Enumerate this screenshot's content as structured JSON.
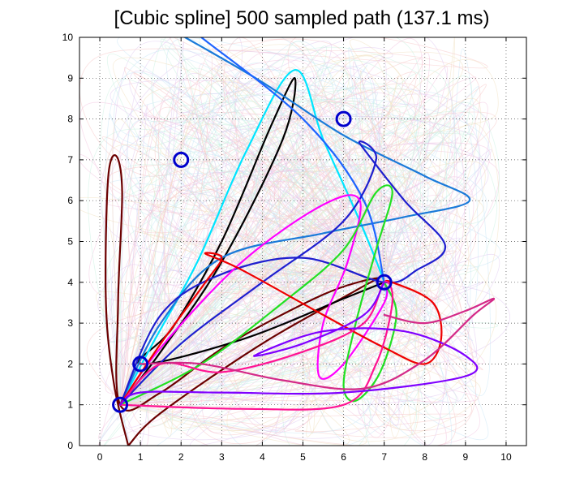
{
  "chart_data": {
    "type": "line",
    "title": "[Cubic spline] 500 sampled path (137.1 ms)",
    "xlabel": "",
    "ylabel": "",
    "xlim": [
      -0.5,
      10.5
    ],
    "ylim": [
      0,
      10
    ],
    "xticks": [
      "0",
      "1",
      "2",
      "3",
      "4",
      "5",
      "6",
      "7",
      "8",
      "9",
      "10"
    ],
    "yticks": [
      "0",
      "1",
      "2",
      "3",
      "4",
      "5",
      "6",
      "7",
      "8",
      "9",
      "10"
    ],
    "grid": true,
    "background_paths": {
      "count": 500,
      "colors": [
        "#f2c4e0",
        "#c8e6f5",
        "#f5c6c6",
        "#e0c8f0",
        "#c8f0e0",
        "#f0e0c0"
      ]
    },
    "waypoints": [
      {
        "x": 0.5,
        "y": 1.0
      },
      {
        "x": 1.0,
        "y": 2.0
      },
      {
        "x": 2.0,
        "y": 7.0
      },
      {
        "x": 6.0,
        "y": 8.0
      },
      {
        "x": 7.0,
        "y": 4.0
      }
    ],
    "waypoint_color": "#0000cc",
    "series": [
      {
        "color": "#6b0000",
        "points": [
          [
            0.7,
            0
          ],
          [
            0.35,
            1.5
          ],
          [
            0.15,
            3.5
          ],
          [
            0.2,
            6.5
          ],
          [
            0.4,
            7.1
          ],
          [
            0.55,
            6.2
          ],
          [
            0.45,
            3.5
          ],
          [
            0.5,
            1.0
          ],
          [
            1.5,
            1.3
          ],
          [
            3.2,
            2.5
          ],
          [
            5.5,
            3.7
          ],
          [
            6.8,
            4.1
          ],
          [
            6.3,
            3.8
          ],
          [
            4.0,
            2.5
          ],
          [
            1.5,
            0.8
          ],
          [
            0.7,
            0
          ]
        ]
      },
      {
        "color": "#000000",
        "points": [
          [
            0.5,
            1.0
          ],
          [
            1.5,
            2.3
          ],
          [
            3.0,
            4.5
          ],
          [
            4.5,
            7.5
          ],
          [
            4.8,
            9.0
          ],
          [
            4.2,
            7.8
          ],
          [
            3.0,
            5.0
          ],
          [
            1.8,
            2.9
          ],
          [
            1.0,
            2.0
          ],
          [
            3.5,
            2.6
          ],
          [
            6.0,
            3.6
          ],
          [
            7.0,
            4.0
          ]
        ]
      },
      {
        "color": "#00e5ff",
        "points": [
          [
            0.5,
            1.0
          ],
          [
            1.3,
            2.5
          ],
          [
            2.4,
            4.5
          ],
          [
            3.6,
            7.2
          ],
          [
            4.8,
            9.2
          ],
          [
            5.5,
            7.5
          ],
          [
            6.4,
            5.5
          ],
          [
            7.0,
            4.0
          ],
          [
            7.05,
            3.6
          ]
        ]
      },
      {
        "color": "#1a7ad9",
        "points": [
          [
            2.1,
            10.0
          ],
          [
            4.0,
            8.9
          ],
          [
            6.0,
            7.6
          ],
          [
            8.0,
            6.6
          ],
          [
            9.1,
            6.0
          ],
          [
            7.5,
            5.6
          ],
          [
            5.5,
            5.2
          ],
          [
            3.0,
            4.6
          ],
          [
            1.5,
            3.0
          ],
          [
            0.5,
            1.0
          ]
        ]
      },
      {
        "color": "#1e64ff",
        "points": [
          [
            2.5,
            10.0
          ],
          [
            5.0,
            8.0
          ],
          [
            6.5,
            6.0
          ],
          [
            7.0,
            4.0
          ]
        ]
      },
      {
        "color": "#1f1fcf",
        "points": [
          [
            0.5,
            1.0
          ],
          [
            2.0,
            2.5
          ],
          [
            4.0,
            4.0
          ],
          [
            6.0,
            5.5
          ],
          [
            6.8,
            7.0
          ],
          [
            6.4,
            7.4
          ],
          [
            7.5,
            6.0
          ],
          [
            8.5,
            4.9
          ],
          [
            7.8,
            4.3
          ],
          [
            7.0,
            4.0
          ],
          [
            5.0,
            4.6
          ],
          [
            3.0,
            4.2
          ],
          [
            1.5,
            3.2
          ],
          [
            0.5,
            1.0
          ]
        ]
      },
      {
        "color": "#ff00ff",
        "points": [
          [
            0.5,
            1.0
          ],
          [
            1.5,
            2.4
          ],
          [
            3.5,
            4.5
          ],
          [
            5.5,
            5.9
          ],
          [
            6.4,
            6.0
          ],
          [
            6.1,
            4.5
          ],
          [
            5.5,
            3.0
          ],
          [
            5.4,
            1.7
          ],
          [
            6.0,
            2.0
          ],
          [
            7.0,
            3.5
          ],
          [
            7.0,
            4.0
          ]
        ]
      },
      {
        "color": "#22e022",
        "points": [
          [
            0.5,
            1.0
          ],
          [
            2.5,
            2.0
          ],
          [
            4.5,
            3.5
          ],
          [
            6.0,
            4.8
          ],
          [
            6.8,
            6.2
          ],
          [
            7.2,
            6.2
          ],
          [
            6.8,
            4.8
          ],
          [
            6.3,
            3.0
          ],
          [
            6.0,
            1.5
          ],
          [
            6.3,
            1.1
          ],
          [
            6.9,
            1.8
          ],
          [
            7.3,
            3.2
          ],
          [
            7.0,
            4.0
          ]
        ]
      },
      {
        "color": "#ee0000",
        "points": [
          [
            0.5,
            1.0
          ],
          [
            1.5,
            2.5
          ],
          [
            2.6,
            4.0
          ],
          [
            3.0,
            4.6
          ],
          [
            2.6,
            4.7
          ],
          [
            3.5,
            4.3
          ],
          [
            5.5,
            3.2
          ],
          [
            7.0,
            2.4
          ],
          [
            8.0,
            2.0
          ],
          [
            8.4,
            2.6
          ],
          [
            8.2,
            3.5
          ],
          [
            7.2,
            4.0
          ],
          [
            7.0,
            4.0
          ]
        ]
      },
      {
        "color": "#ff1493",
        "points": [
          [
            0.5,
            1.0
          ],
          [
            1.5,
            2.0
          ],
          [
            3.0,
            1.8
          ],
          [
            5.0,
            2.3
          ],
          [
            6.5,
            3.0
          ],
          [
            7.0,
            4.0
          ],
          [
            7.2,
            3.5
          ],
          [
            6.8,
            2.0
          ],
          [
            6.0,
            1.0
          ],
          [
            3.5,
            0.9
          ],
          [
            0.5,
            1.0
          ]
        ]
      },
      {
        "color": "#7f00ff",
        "points": [
          [
            0.5,
            1.0
          ],
          [
            1.0,
            1.3
          ],
          [
            3.0,
            1.3
          ],
          [
            6.0,
            1.3
          ],
          [
            9.0,
            1.7
          ],
          [
            9.0,
            2.2
          ],
          [
            7.5,
            2.8
          ],
          [
            5.5,
            2.8
          ],
          [
            3.8,
            2.2
          ],
          [
            5.0,
            2.5
          ],
          [
            6.5,
            3.2
          ],
          [
            7.0,
            4.0
          ]
        ]
      },
      {
        "color": "#d42a88",
        "points": [
          [
            1.0,
            2.0
          ],
          [
            2.5,
            2.0
          ],
          [
            4.5,
            1.6
          ],
          [
            6.5,
            1.4
          ],
          [
            8.0,
            2.1
          ],
          [
            9.2,
            3.2
          ],
          [
            9.7,
            3.6
          ],
          [
            9.0,
            3.3
          ],
          [
            8.0,
            3.0
          ],
          [
            7.0,
            3.2
          ]
        ]
      }
    ]
  }
}
